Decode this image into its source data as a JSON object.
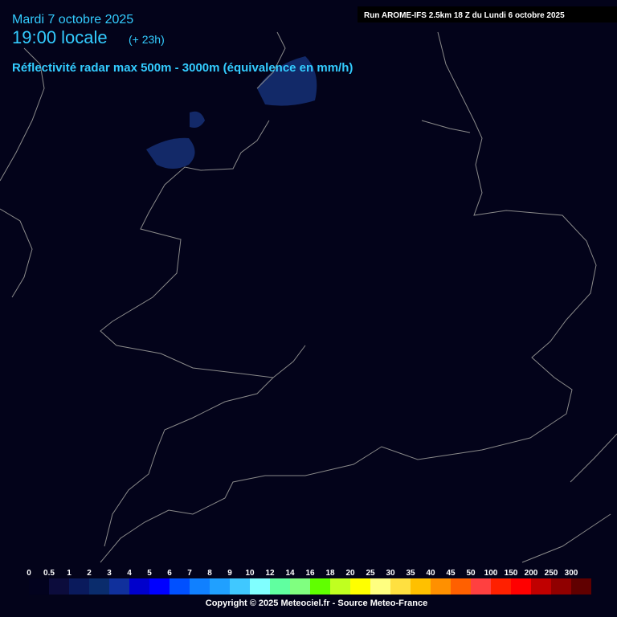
{
  "header": {
    "date": "Mardi 7 octobre 2025",
    "time": "19:00 locale",
    "offset": "(+ 23h)",
    "subtitle": "Réflectivité radar max 500m - 3000m (équivalence en mm/h)",
    "run": "Run AROME-IFS 2.5km 18 Z du Lundi 6 octobre 2025"
  },
  "legend": {
    "items": [
      {
        "value": 0,
        "color": "#02021e"
      },
      {
        "value": 0.5,
        "color": "#0c0c3c"
      },
      {
        "value": 1,
        "color": "#0a1a5c"
      },
      {
        "value": 2,
        "color": "#0a2c6c"
      },
      {
        "value": 3,
        "color": "#10309c"
      },
      {
        "value": 4,
        "color": "#0000cc"
      },
      {
        "value": 5,
        "color": "#0000ff"
      },
      {
        "value": 6,
        "color": "#0050ff"
      },
      {
        "value": 7,
        "color": "#1080ff"
      },
      {
        "value": 8,
        "color": "#20a0ff"
      },
      {
        "value": 9,
        "color": "#40c8ff"
      },
      {
        "value": 10,
        "color": "#80ffff"
      },
      {
        "value": 12,
        "color": "#60ffa0"
      },
      {
        "value": 14,
        "color": "#80ff80"
      },
      {
        "value": 16,
        "color": "#60ff00"
      },
      {
        "value": 18,
        "color": "#c0ff20"
      },
      {
        "value": 20,
        "color": "#ffff00"
      },
      {
        "value": 25,
        "color": "#ffff80"
      },
      {
        "value": 30,
        "color": "#ffe040"
      },
      {
        "value": 35,
        "color": "#ffc000"
      },
      {
        "value": 40,
        "color": "#ff9000"
      },
      {
        "value": 45,
        "color": "#ff6000"
      },
      {
        "value": 50,
        "color": "#ff4040"
      },
      {
        "value": 100,
        "color": "#ff2000"
      },
      {
        "value": 150,
        "color": "#ff0000"
      },
      {
        "value": 200,
        "color": "#c00000"
      },
      {
        "value": 250,
        "color": "#900000"
      },
      {
        "value": 300,
        "color": "#600000"
      }
    ]
  },
  "footer": {
    "copyright": "Copyright © 2025 Meteociel.fr - Source Meteo-France"
  }
}
